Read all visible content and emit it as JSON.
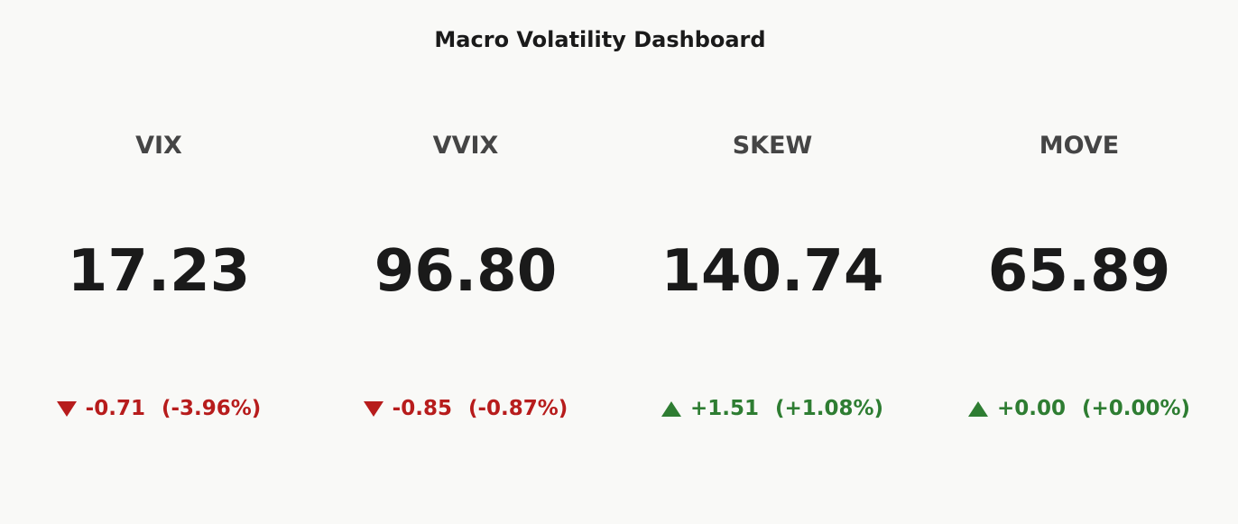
{
  "title": "Macro Volatility Dashboard",
  "indicators": [
    {
      "name": "VIX",
      "value": "17.23",
      "delta": "-0.71",
      "delta_percent": "(-3.96%)"
    },
    {
      "name": "VVIX",
      "value": "96.80",
      "delta": "-0.85",
      "delta_percent": "(-0.87%)"
    },
    {
      "name": "SKEW",
      "value": "140.74",
      "delta": "+1.51",
      "delta_percent": "(+1.08%)"
    },
    {
      "name": "MOVE",
      "value": "65.89",
      "delta": "+0.00",
      "delta_percent": "(+0.00%)"
    }
  ],
  "colors": {
    "down": "#b71c1c",
    "up": "#2e7d32"
  }
}
